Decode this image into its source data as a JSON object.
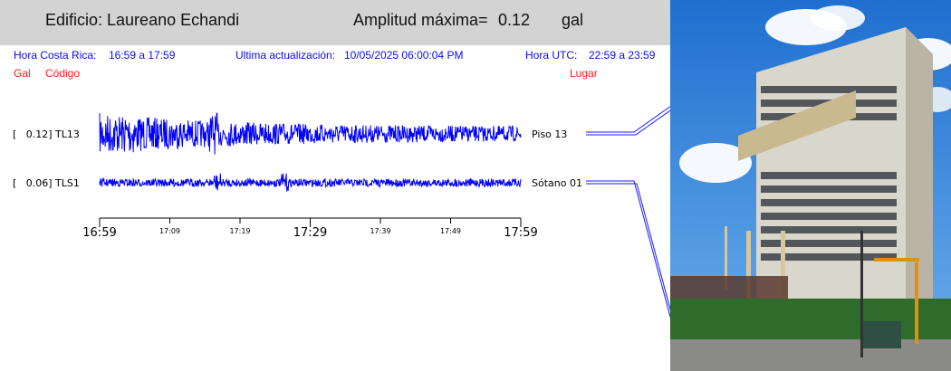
{
  "header": {
    "building": "Edificio: Laureano Echandi",
    "amp_label": "Amplitud máxima=",
    "amp_value": "0.12",
    "amp_unit": "gal"
  },
  "info": {
    "cr_label": "Hora Costa Rica:",
    "cr_range": "16:59 a 17:59",
    "update_label": "Ultima actualización:",
    "update_value": "10/05/2025 06:00:04 PM",
    "utc_label": "Hora UTC:",
    "utc_range": "22:59 a 23:59"
  },
  "columns": {
    "gal": "Gal",
    "code": "Código",
    "place": "Lugar"
  },
  "colors": {
    "trace": "#0000ff",
    "header_bg": "#d3d3d3",
    "info_text": "#0a0aff",
    "column_text": "#ff1a1a"
  },
  "chart_data": {
    "type": "line",
    "x_unit": "time (Hora Costa Rica)",
    "x_range": [
      "16:59",
      "17:59"
    ],
    "major_ticks": [
      "16:59",
      "17:29",
      "17:59"
    ],
    "minor_ticks": [
      "17:09",
      "17:19",
      "17:39",
      "17:49"
    ],
    "channels": [
      {
        "gal": "0.12",
        "code": "TL13",
        "place": "Piso 13",
        "bracket": "[   0.12] TL13",
        "peak_gal": 0.12
      },
      {
        "gal": "0.06",
        "code": "TLS1",
        "place": "Sótano 01",
        "bracket": "[   0.06] TLS1",
        "peak_gal": 0.06
      }
    ]
  },
  "photo": {
    "alt": "Edificio Laureano Echandi"
  }
}
